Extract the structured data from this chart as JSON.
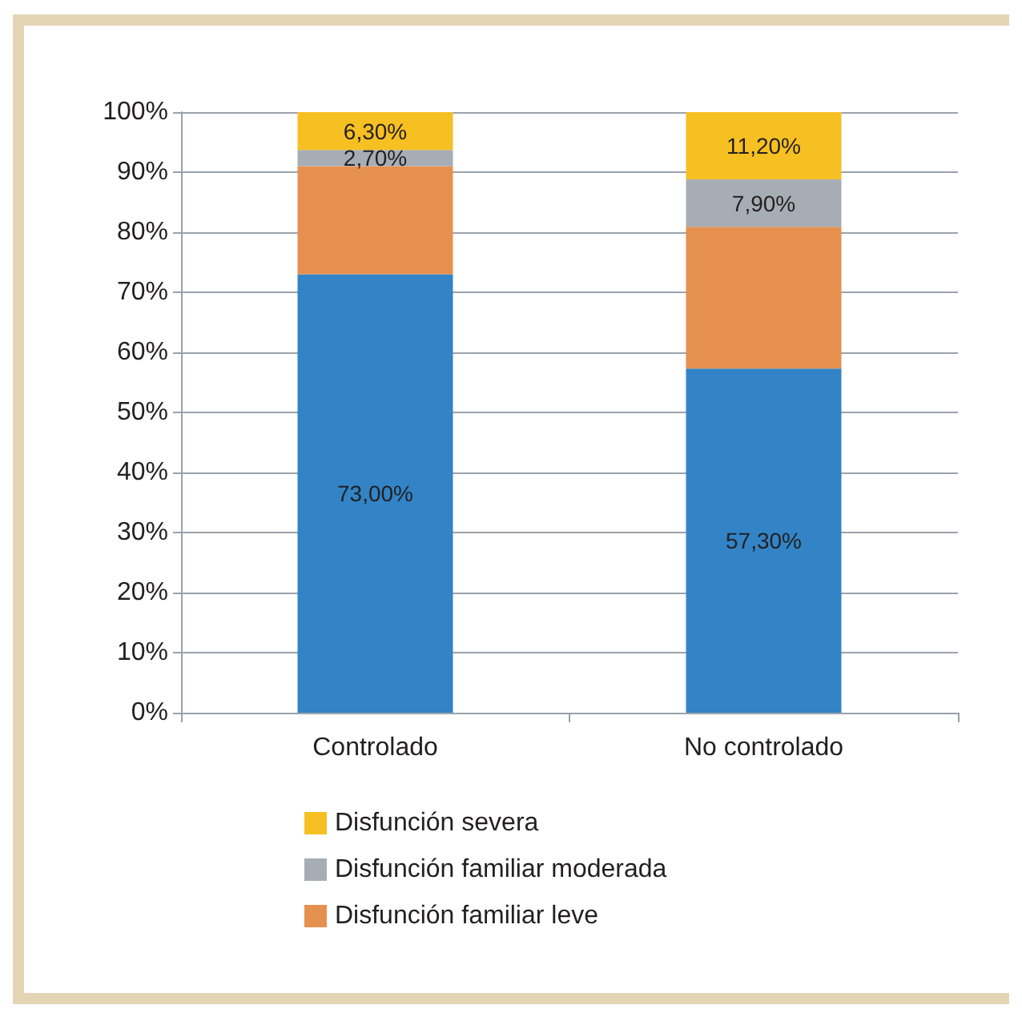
{
  "chart_data": {
    "type": "bar",
    "stacked": true,
    "categories": [
      "Controlado",
      "No controlado"
    ],
    "series": [
      {
        "color": "#3284c6",
        "values": [
          73.0,
          57.3
        ],
        "value_labels": [
          "73,00%",
          "57,30%"
        ]
      },
      {
        "name": "Disfunción familiar leve",
        "color": "#e69050",
        "values": [
          18.0,
          23.6
        ],
        "value_labels": [
          null,
          null
        ]
      },
      {
        "name": "Disfunción familiar moderada",
        "color": "#a7adb5",
        "values": [
          2.7,
          7.9
        ],
        "value_labels": [
          "2,70%",
          "7,90%"
        ]
      },
      {
        "name": "Disfunción severa",
        "color": "#f6c022",
        "values": [
          6.3,
          11.2
        ],
        "value_labels": [
          "6,30%",
          "11,20%"
        ]
      }
    ],
    "ylim": [
      0,
      100
    ],
    "yticks": [
      {
        "value": 0,
        "label": "0%"
      },
      {
        "value": 10,
        "label": "10%"
      },
      {
        "value": 20,
        "label": "20%"
      },
      {
        "value": 30,
        "label": "30%"
      },
      {
        "value": 40,
        "label": "40%"
      },
      {
        "value": 50,
        "label": "50%"
      },
      {
        "value": 60,
        "label": "60%"
      },
      {
        "value": 70,
        "label": "70%"
      },
      {
        "value": 80,
        "label": "80%"
      },
      {
        "value": 90,
        "label": "90%"
      },
      {
        "value": 100,
        "label": "100%"
      }
    ],
    "grid": "y",
    "legend": "bottom"
  }
}
